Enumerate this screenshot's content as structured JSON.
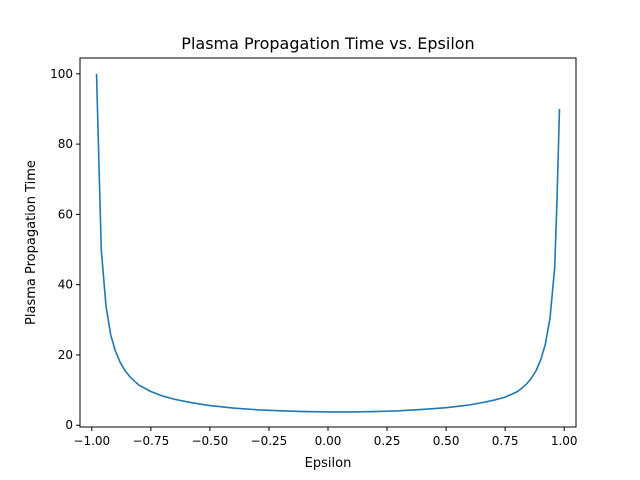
{
  "chart_data": {
    "type": "line",
    "title": "Plasma Propagation Time vs. Epsilon",
    "xlabel": "Epsilon",
    "ylabel": "Plasma Propagation Time",
    "xlim": [
      -1.05,
      1.05
    ],
    "ylim": [
      -0.5,
      104.5
    ],
    "x_ticks": [
      -1.0,
      -0.75,
      -0.5,
      -0.25,
      0.0,
      0.25,
      0.5,
      0.75,
      1.0
    ],
    "x_tick_labels": [
      "−1.00",
      "−0.75",
      "−0.50",
      "−0.25",
      "0.00",
      "0.25",
      "0.50",
      "0.75",
      "1.00"
    ],
    "y_ticks": [
      0,
      20,
      40,
      60,
      80,
      100
    ],
    "y_tick_labels": [
      "0",
      "20",
      "40",
      "60",
      "80",
      "100"
    ],
    "grid": false,
    "legend": false,
    "line_color": "#1f77b4",
    "series": [
      {
        "x": [
          -0.98,
          -0.96,
          -0.94,
          -0.92,
          -0.9,
          -0.88,
          -0.86,
          -0.84,
          -0.82,
          -0.8,
          -0.75,
          -0.7,
          -0.65,
          -0.6,
          -0.55,
          -0.5,
          -0.4,
          -0.3,
          -0.2,
          -0.1,
          0.0,
          0.1,
          0.2,
          0.3,
          0.4,
          0.5,
          0.55,
          0.6,
          0.65,
          0.7,
          0.75,
          0.8,
          0.82,
          0.84,
          0.86,
          0.88,
          0.9,
          0.92,
          0.94,
          0.96,
          0.97,
          0.98
        ],
        "y": [
          100.0,
          50.0,
          34.0,
          25.7,
          21.1,
          17.9,
          15.6,
          13.9,
          12.6,
          11.4,
          9.6,
          8.3,
          7.4,
          6.7,
          6.1,
          5.6,
          4.9,
          4.4,
          4.1,
          3.9,
          3.8,
          3.8,
          3.9,
          4.1,
          4.5,
          5.0,
          5.4,
          5.8,
          6.4,
          7.1,
          8.0,
          9.5,
          10.5,
          11.7,
          13.3,
          15.4,
          18.5,
          23.0,
          30.5,
          45.0,
          65.0,
          90.0
        ]
      }
    ]
  }
}
